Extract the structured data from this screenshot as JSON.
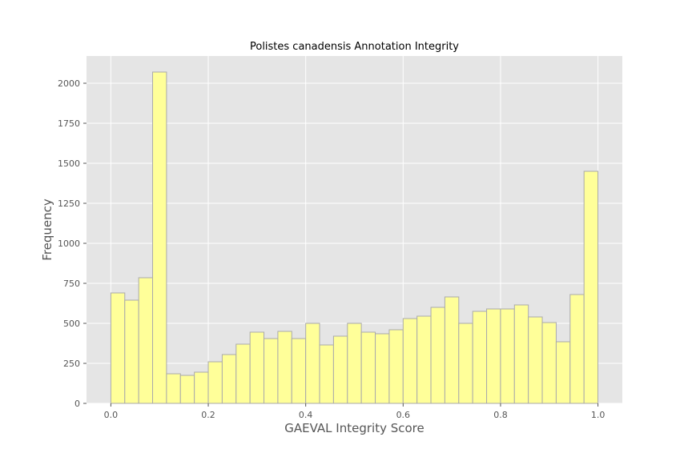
{
  "chart_data": {
    "type": "bar",
    "title": "Polistes canadensis Annotation Integrity",
    "xlabel": "GAEVAL Integrity Score",
    "ylabel": "Frequency",
    "xlim": [
      -0.05,
      1.05
    ],
    "ylim": [
      0,
      2170
    ],
    "grid": true,
    "bin_start": 0.0,
    "bin_width": 0.02857,
    "values": [
      690,
      645,
      785,
      2070,
      185,
      175,
      195,
      260,
      305,
      370,
      445,
      405,
      450,
      405,
      500,
      365,
      420,
      500,
      445,
      435,
      460,
      530,
      545,
      600,
      665,
      500,
      575,
      590,
      590,
      615,
      540,
      505,
      385,
      680,
      1450
    ],
    "xticks": [
      0.0,
      0.2,
      0.4,
      0.6,
      0.8,
      1.0
    ],
    "xtick_labels": [
      "0.0",
      "0.2",
      "0.4",
      "0.6",
      "0.8",
      "1.0"
    ],
    "yticks": [
      0,
      250,
      500,
      750,
      1000,
      1250,
      1500,
      1750,
      2000
    ],
    "ytick_labels": [
      "0",
      "250",
      "500",
      "750",
      "1000",
      "1250",
      "1500",
      "1750",
      "2000"
    ],
    "colors": {
      "bar_fill": "#ffff99",
      "bar_edge": "#aaaaaa",
      "plot_background": "#e5e5e5",
      "grid": "#ffffff"
    }
  }
}
